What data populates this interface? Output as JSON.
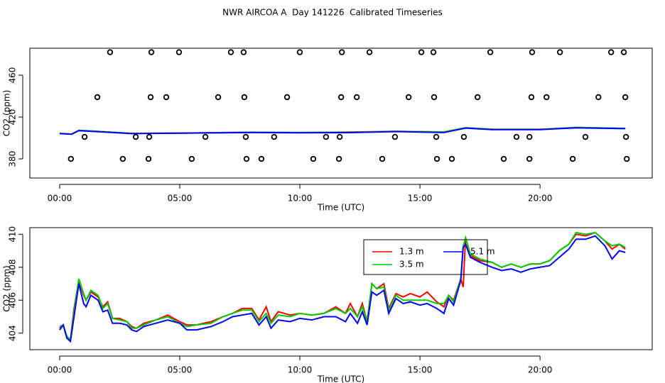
{
  "title": "NWR AIRCOA A  Day 141226  Calibrated Timeseries",
  "chart_data": [
    {
      "type": "line",
      "xlabel": "Time (UTC)",
      "ylabel": "CO2 (ppm)",
      "xlim": [
        -1.24,
        24.67
      ],
      "ylim": [
        361.7,
        485.8
      ],
      "xticks": [
        {
          "value": 0,
          "label": "00:00"
        },
        {
          "value": 5,
          "label": "05:00"
        },
        {
          "value": 10,
          "label": "10:00"
        },
        {
          "value": 15,
          "label": "15:00"
        },
        {
          "value": 20,
          "label": "20:00"
        }
      ],
      "yticks": [
        380,
        420,
        460
      ],
      "x": [
        0,
        0.5,
        0.8,
        1.5,
        3,
        5,
        8,
        10,
        12,
        14,
        16,
        16.9,
        18,
        20,
        21.5,
        23.55
      ],
      "series": [
        {
          "color": "#ff0000",
          "values": [
            404.3,
            403.7,
            407.2,
            406.4,
            404.4,
            404.7,
            405.5,
            405.2,
            405.6,
            406.4,
            405.6,
            409.8,
            408.3,
            408.2,
            410.0,
            409.1
          ]
        },
        {
          "color": "#00cc00",
          "values": [
            404.4,
            403.7,
            407.3,
            406.5,
            404.3,
            404.6,
            405.4,
            405.2,
            405.4,
            406.3,
            405.8,
            409.8,
            408.3,
            408.2,
            410.1,
            409.2
          ]
        },
        {
          "color": "#0000ff",
          "values": [
            404.2,
            403.6,
            407.0,
            406.1,
            404.2,
            404.6,
            405.2,
            404.9,
            405.1,
            406.1,
            405.2,
            409.4,
            408.0,
            408.0,
            409.7,
            408.9
          ]
        }
      ],
      "scatter": {
        "x": [
          2.1,
          3.82,
          4.97,
          7.13,
          7.66,
          10.0,
          11.75,
          12.9,
          15.06,
          15.56,
          17.93,
          19.67,
          20.83,
          22.96,
          23.49,
          1.57,
          3.79,
          4.44,
          6.6,
          7.69,
          9.47,
          11.72,
          12.37,
          14.53,
          15.59,
          17.4,
          19.64,
          20.27,
          22.43,
          23.55,
          1.04,
          3.17,
          3.73,
          6.07,
          7.75,
          8.93,
          11.09,
          11.66,
          13.96,
          15.68,
          16.83,
          19.02,
          19.56,
          21.89,
          23.58,
          0.47,
          2.63,
          3.7,
          5.5,
          7.78,
          8.4,
          10.56,
          11.63,
          13.43,
          15.71,
          16.33,
          18.49,
          19.56,
          21.36,
          23.61
        ],
        "y": [
          482,
          482,
          482,
          482,
          482,
          482,
          482,
          482,
          482,
          482,
          482,
          482,
          482,
          482,
          482,
          439,
          439,
          439,
          439,
          439,
          439,
          439,
          439,
          439,
          439,
          439,
          439,
          439,
          439,
          439,
          401,
          401,
          401,
          401,
          401,
          401,
          401,
          401,
          401,
          401,
          401,
          401,
          401,
          401,
          401,
          380,
          380,
          380,
          380,
          380,
          380,
          380,
          380,
          380,
          380,
          380,
          380,
          380,
          380,
          380
        ]
      }
    },
    {
      "type": "line",
      "xlabel": "Time (UTC)",
      "ylabel": "CO2 (ppm)",
      "xlim": [
        -1.24,
        24.67
      ],
      "ylim": [
        403.0,
        410.4
      ],
      "xticks": [
        {
          "value": 0,
          "label": "00:00"
        },
        {
          "value": 5,
          "label": "05:00"
        },
        {
          "value": 10,
          "label": "10:00"
        },
        {
          "value": 15,
          "label": "15:00"
        },
        {
          "value": 20,
          "label": "20:00"
        }
      ],
      "yticks": [
        404,
        406,
        408,
        410
      ],
      "x": [
        0.0,
        0.15,
        0.3,
        0.45,
        0.6,
        0.8,
        1.0,
        1.1,
        1.3,
        1.6,
        1.8,
        2.0,
        2.2,
        2.5,
        2.8,
        3.0,
        3.2,
        3.5,
        4.0,
        4.5,
        5.0,
        5.3,
        5.7,
        6.3,
        6.8,
        7.2,
        7.6,
        8.0,
        8.3,
        8.6,
        8.8,
        9.1,
        9.6,
        10.0,
        10.5,
        11.0,
        11.5,
        11.9,
        12.1,
        12.4,
        12.6,
        12.8,
        13.0,
        13.2,
        13.5,
        13.7,
        14.0,
        14.3,
        14.6,
        15.0,
        15.3,
        15.7,
        16.0,
        16.2,
        16.4,
        16.7,
        16.8,
        16.9,
        17.1,
        17.5,
        18.0,
        18.4,
        18.8,
        19.2,
        19.6,
        20.0,
        20.4,
        20.8,
        21.2,
        21.5,
        21.9,
        22.3,
        22.7,
        23.0,
        23.3,
        23.55
      ],
      "series": [
        {
          "name": "1.3 m",
          "color": "#ff0000",
          "values": [
            404.3,
            404.5,
            403.8,
            403.6,
            405.5,
            407.2,
            406.3,
            406.0,
            406.5,
            406.2,
            405.6,
            405.9,
            404.9,
            404.9,
            404.7,
            404.4,
            404.3,
            404.6,
            404.8,
            405.1,
            404.7,
            404.5,
            404.5,
            404.7,
            405.0,
            405.2,
            405.5,
            405.5,
            404.8,
            405.6,
            404.7,
            405.3,
            405.1,
            405.2,
            405.1,
            405.2,
            405.6,
            405.2,
            405.8,
            405.0,
            405.8,
            404.7,
            407.0,
            406.7,
            407.0,
            405.5,
            406.4,
            406.2,
            406.4,
            406.2,
            406.5,
            405.9,
            405.6,
            406.3,
            406.0,
            407.3,
            406.8,
            409.8,
            408.7,
            408.4,
            408.3,
            408.0,
            408.2,
            408.0,
            408.2,
            408.2,
            408.4,
            409.0,
            409.4,
            410.0,
            409.9,
            410.1,
            409.6,
            409.1,
            409.4,
            409.1
          ]
        },
        {
          "name": "3.5 m",
          "color": "#00cc00",
          "values": [
            404.4,
            404.5,
            403.8,
            403.6,
            405.3,
            407.3,
            406.4,
            406.0,
            406.6,
            406.3,
            405.5,
            405.8,
            404.9,
            404.8,
            404.7,
            404.3,
            404.3,
            404.5,
            404.8,
            405.0,
            404.6,
            404.4,
            404.5,
            404.6,
            405.0,
            405.2,
            405.4,
            405.4,
            404.7,
            405.2,
            404.6,
            405.1,
            405.0,
            405.2,
            405.1,
            405.2,
            405.5,
            405.2,
            405.5,
            405.0,
            405.6,
            404.7,
            407.0,
            406.7,
            406.8,
            405.4,
            406.3,
            406.0,
            406.0,
            406.0,
            406.0,
            405.8,
            405.8,
            406.3,
            405.9,
            407.3,
            409.3,
            409.8,
            408.8,
            408.5,
            408.3,
            408.0,
            408.2,
            408.0,
            408.2,
            408.2,
            408.4,
            409.0,
            409.4,
            410.1,
            410.0,
            410.1,
            409.6,
            409.3,
            409.4,
            409.2
          ]
        },
        {
          "name": "5.1 m",
          "color": "#0000ff",
          "values": [
            404.2,
            404.5,
            403.7,
            403.5,
            405.0,
            407.0,
            405.8,
            405.6,
            406.3,
            406.0,
            405.3,
            405.4,
            404.6,
            404.6,
            404.5,
            404.2,
            404.1,
            404.4,
            404.6,
            404.8,
            404.6,
            404.2,
            404.2,
            404.4,
            404.7,
            405.0,
            405.1,
            405.2,
            404.5,
            405.0,
            404.3,
            404.8,
            404.7,
            404.9,
            404.8,
            405.0,
            405.0,
            404.7,
            405.2,
            404.6,
            405.3,
            404.5,
            406.5,
            406.3,
            406.6,
            405.2,
            406.1,
            405.8,
            405.9,
            405.7,
            405.8,
            405.5,
            405.2,
            406.1,
            405.7,
            407.2,
            409.2,
            409.4,
            408.6,
            408.3,
            408.0,
            407.8,
            407.9,
            407.7,
            407.9,
            408.0,
            408.1,
            408.6,
            409.1,
            409.7,
            409.7,
            409.9,
            409.3,
            408.5,
            409.0,
            408.9
          ]
        }
      ]
    }
  ]
}
